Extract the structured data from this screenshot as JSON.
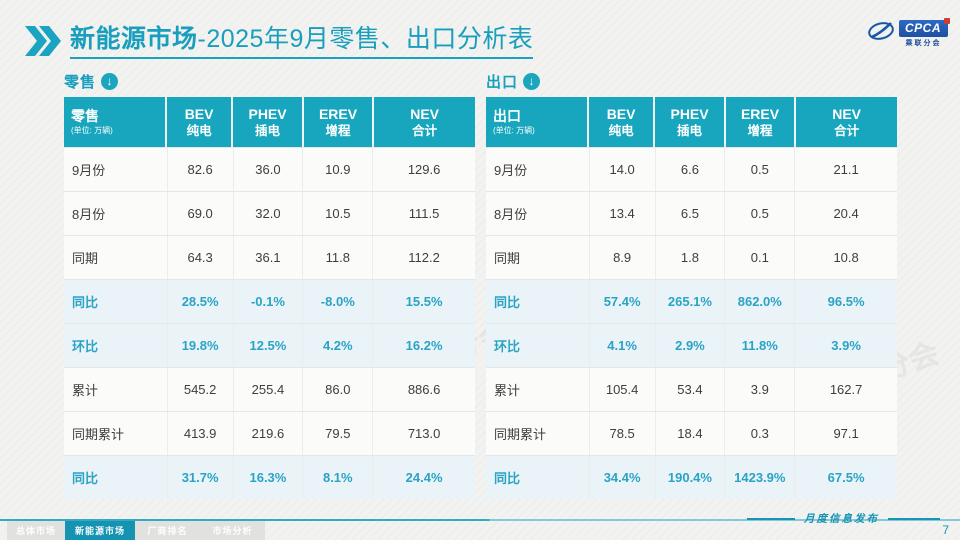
{
  "title": {
    "prefix": "新能源市场",
    "suffix": "-2025年9月零售、出口分析表"
  },
  "logo": {
    "brand": "CPCA",
    "sub": "乘联分会"
  },
  "section_icon": "↓",
  "watermark": "CPCA 乘联分会",
  "tables": [
    {
      "section_label": "零售",
      "corner_label": "零售",
      "unit": "(单位: 万辆)",
      "columns": [
        {
          "en": "BEV",
          "zh": "纯电"
        },
        {
          "en": "PHEV",
          "zh": "插电"
        },
        {
          "en": "EREV",
          "zh": "增程"
        },
        {
          "en": "NEV",
          "zh": "合计"
        }
      ],
      "rows": [
        {
          "label": "9月份",
          "values": [
            "82.6",
            "36.0",
            "10.9",
            "129.6"
          ],
          "highlight": false
        },
        {
          "label": "8月份",
          "values": [
            "69.0",
            "32.0",
            "10.5",
            "111.5"
          ],
          "highlight": false
        },
        {
          "label": "同期",
          "values": [
            "64.3",
            "36.1",
            "11.8",
            "112.2"
          ],
          "highlight": false
        },
        {
          "label": "同比",
          "values": [
            "28.5%",
            "-0.1%",
            "-8.0%",
            "15.5%"
          ],
          "highlight": true
        },
        {
          "label": "环比",
          "values": [
            "19.8%",
            "12.5%",
            "4.2%",
            "16.2%"
          ],
          "highlight": true
        },
        {
          "label": "累计",
          "values": [
            "545.2",
            "255.4",
            "86.0",
            "886.6"
          ],
          "highlight": false
        },
        {
          "label": "同期累计",
          "values": [
            "413.9",
            "219.6",
            "79.5",
            "713.0"
          ],
          "highlight": false
        },
        {
          "label": "同比",
          "values": [
            "31.7%",
            "16.3%",
            "8.1%",
            "24.4%"
          ],
          "highlight": true
        }
      ]
    },
    {
      "section_label": "出口",
      "corner_label": "出口",
      "unit": "(单位: 万辆)",
      "columns": [
        {
          "en": "BEV",
          "zh": "纯电"
        },
        {
          "en": "PHEV",
          "zh": "插电"
        },
        {
          "en": "EREV",
          "zh": "增程"
        },
        {
          "en": "NEV",
          "zh": "合计"
        }
      ],
      "rows": [
        {
          "label": "9月份",
          "values": [
            "14.0",
            "6.6",
            "0.5",
            "21.1"
          ],
          "highlight": false
        },
        {
          "label": "8月份",
          "values": [
            "13.4",
            "6.5",
            "0.5",
            "20.4"
          ],
          "highlight": false
        },
        {
          "label": "同期",
          "values": [
            "8.9",
            "1.8",
            "0.1",
            "10.8"
          ],
          "highlight": false
        },
        {
          "label": "同比",
          "values": [
            "57.4%",
            "265.1%",
            "862.0%",
            "96.5%"
          ],
          "highlight": true
        },
        {
          "label": "环比",
          "values": [
            "4.1%",
            "2.9%",
            "11.8%",
            "3.9%"
          ],
          "highlight": true
        },
        {
          "label": "累计",
          "values": [
            "105.4",
            "53.4",
            "3.9",
            "162.7"
          ],
          "highlight": false
        },
        {
          "label": "同期累计",
          "values": [
            "78.5",
            "18.4",
            "0.3",
            "97.1"
          ],
          "highlight": false
        },
        {
          "label": "同比",
          "values": [
            "34.4%",
            "190.4%",
            "1423.9%",
            "67.5%"
          ],
          "highlight": true
        }
      ]
    }
  ],
  "footer": {
    "tabs": [
      {
        "label": "总体市场",
        "active": false
      },
      {
        "label": "新能源市场",
        "active": true
      },
      {
        "label": "厂商排名",
        "active": false
      },
      {
        "label": "市场分析",
        "active": false
      }
    ],
    "caption": "月度信息发布",
    "page_number": "7"
  },
  "colors": {
    "accent": "#18A6BE",
    "highlight_bg": "#EAF4F8",
    "highlight_text": "#2AA3C5",
    "logo_blue": "#1F4FA0"
  }
}
